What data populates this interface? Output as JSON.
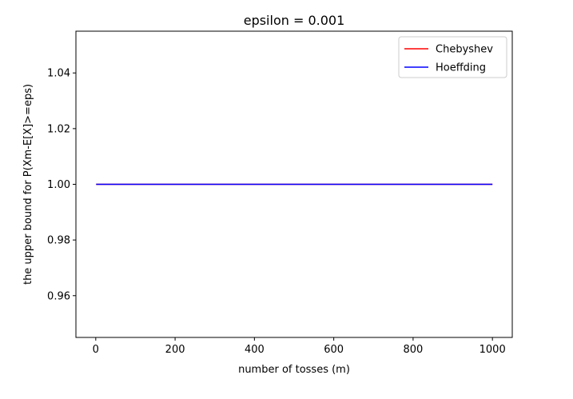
{
  "chart_data": {
    "type": "line",
    "title": "epsilon = 0.001",
    "xlabel": "number of tosses (m)",
    "ylabel": "the upper bound for P(Xm-E[X]>=eps)",
    "xlim": [
      -50,
      1050
    ],
    "ylim": [
      0.945,
      1.055
    ],
    "xticks": [
      0,
      200,
      400,
      600,
      800,
      1000
    ],
    "xtick_labels": [
      "0",
      "200",
      "400",
      "600",
      "800",
      "1000"
    ],
    "yticks": [
      0.96,
      0.98,
      1.0,
      1.02,
      1.04
    ],
    "ytick_labels": [
      "0.96",
      "0.98",
      "1.00",
      "1.02",
      "1.04"
    ],
    "grid": false,
    "legend_position": "top-right",
    "series": [
      {
        "name": "Chebyshev",
        "color": "#ff0000",
        "x": [
          1,
          1000
        ],
        "y": [
          1.0,
          1.0
        ]
      },
      {
        "name": "Hoeffding",
        "color": "#0000ff",
        "x": [
          1,
          1000
        ],
        "y": [
          1.0,
          1.0
        ]
      }
    ]
  }
}
